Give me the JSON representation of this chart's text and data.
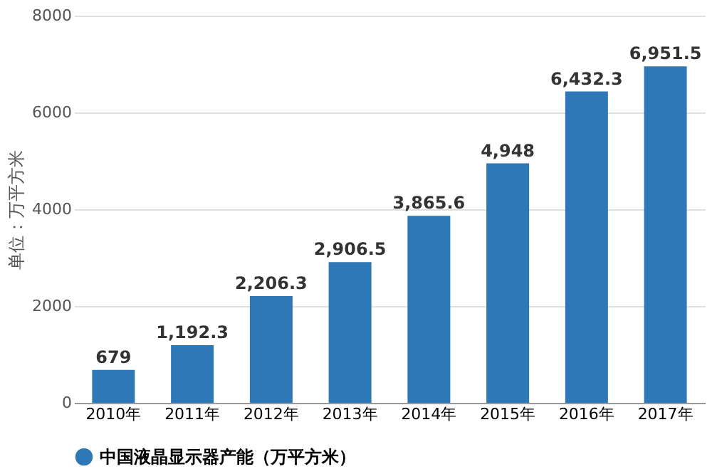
{
  "chart_data": {
    "type": "bar",
    "ylabel": "单位：万平方米",
    "categories": [
      "2010年",
      "2011年",
      "2012年",
      "2013年",
      "2014年",
      "2015年",
      "2016年",
      "2017年"
    ],
    "series": [
      {
        "name": "中国液晶显示器产能（万平方米）",
        "color": "#2e78b7",
        "values": [
          679,
          1192.3,
          2206.3,
          2906.5,
          3865.6,
          4948,
          6432.3,
          6951.5
        ],
        "value_labels": [
          "679",
          "1,192.3",
          "2,206.3",
          "2,906.5",
          "3,865.6",
          "4,948",
          "6,432.3",
          "6,951.5"
        ]
      }
    ],
    "ylim": [
      0,
      8000
    ],
    "yticks": [
      0,
      2000,
      4000,
      6000,
      8000
    ],
    "grid": "y",
    "legend": "bottom"
  }
}
